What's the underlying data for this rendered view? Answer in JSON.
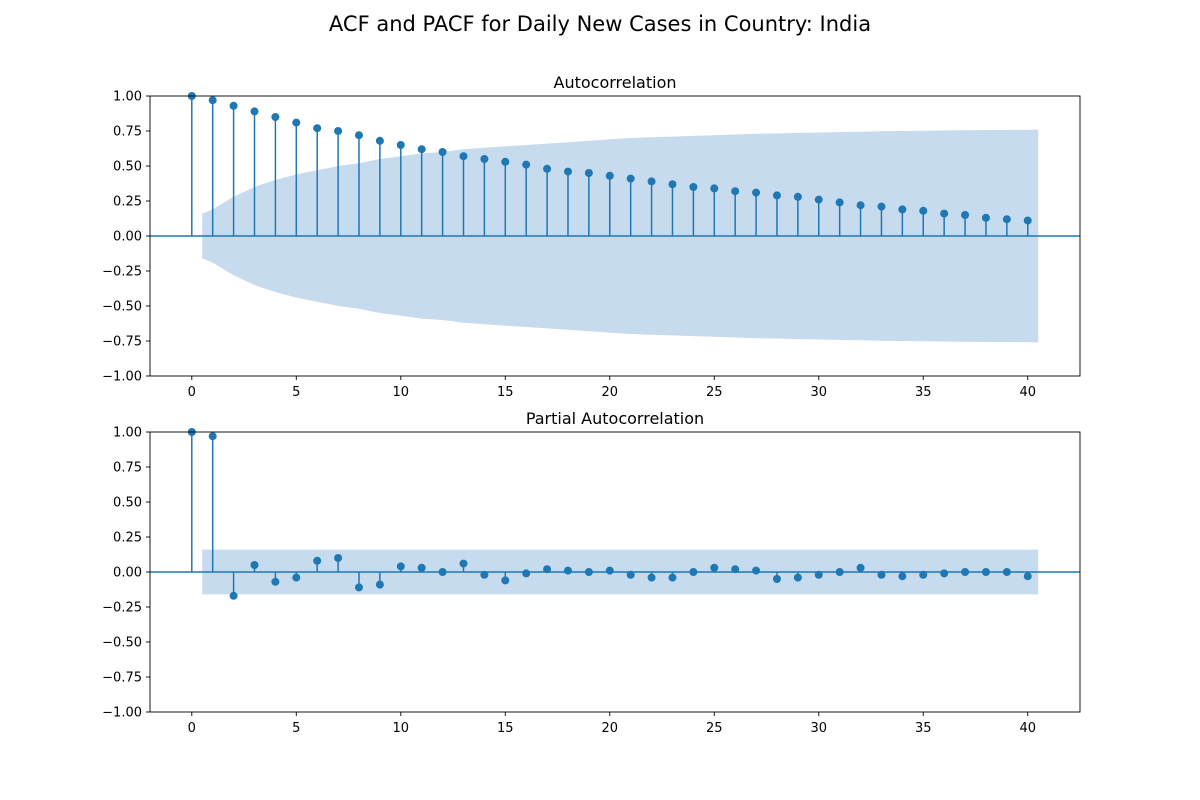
{
  "figure_title": "ACF and PACF for Daily New Cases in Country: India",
  "colors": {
    "accent": "#1f77b4",
    "band": "#c6dbed",
    "axis": "#000000"
  },
  "chart_data": [
    {
      "type": "scatter",
      "title": "Autocorrelation",
      "xlabel": "",
      "ylabel": "",
      "xlim": [
        -2,
        42.5
      ],
      "ylim": [
        -1.0,
        1.0
      ],
      "xticks": [
        0,
        5,
        10,
        15,
        20,
        25,
        30,
        35,
        40
      ],
      "yticks": [
        "1.00",
        "0.75",
        "0.50",
        "0.25",
        "0.00",
        "−0.25",
        "−0.50",
        "−0.75",
        "−1.00"
      ],
      "lags": [
        0,
        1,
        2,
        3,
        4,
        5,
        6,
        7,
        8,
        9,
        10,
        11,
        12,
        13,
        14,
        15,
        16,
        17,
        18,
        19,
        20,
        21,
        22,
        23,
        24,
        25,
        26,
        27,
        28,
        29,
        30,
        31,
        32,
        33,
        34,
        35,
        36,
        37,
        38,
        39,
        40
      ],
      "values": [
        1.0,
        0.97,
        0.93,
        0.89,
        0.85,
        0.81,
        0.77,
        0.75,
        0.72,
        0.68,
        0.65,
        0.62,
        0.6,
        0.57,
        0.55,
        0.53,
        0.51,
        0.48,
        0.46,
        0.45,
        0.43,
        0.41,
        0.39,
        0.37,
        0.35,
        0.34,
        0.32,
        0.31,
        0.29,
        0.28,
        0.26,
        0.24,
        0.22,
        0.21,
        0.19,
        0.18,
        0.16,
        0.15,
        0.13,
        0.12,
        0.11
      ],
      "confidence_band": {
        "lags": [
          0.5,
          1,
          2,
          3,
          4,
          5,
          6,
          7,
          8,
          9,
          10,
          11,
          12,
          13,
          14,
          15,
          16,
          17,
          18,
          19,
          20,
          21,
          22,
          23,
          24,
          25,
          26,
          27,
          28,
          29,
          30,
          31,
          32,
          33,
          34,
          35,
          36,
          37,
          38,
          39,
          40,
          40.5
        ],
        "upper": [
          0.16,
          0.19,
          0.28,
          0.35,
          0.4,
          0.44,
          0.47,
          0.5,
          0.52,
          0.55,
          0.57,
          0.59,
          0.6,
          0.62,
          0.63,
          0.64,
          0.65,
          0.66,
          0.67,
          0.68,
          0.69,
          0.7,
          0.705,
          0.71,
          0.715,
          0.72,
          0.725,
          0.73,
          0.733,
          0.736,
          0.739,
          0.742,
          0.745,
          0.748,
          0.75,
          0.752,
          0.754,
          0.756,
          0.757,
          0.758,
          0.759,
          0.76
        ]
      }
    },
    {
      "type": "scatter",
      "title": "Partial Autocorrelation",
      "xlabel": "",
      "ylabel": "",
      "xlim": [
        -2,
        42.5
      ],
      "ylim": [
        -1.0,
        1.0
      ],
      "xticks": [
        0,
        5,
        10,
        15,
        20,
        25,
        30,
        35,
        40
      ],
      "yticks": [
        "1.00",
        "0.75",
        "0.50",
        "0.25",
        "0.00",
        "−0.25",
        "−0.50",
        "−0.75",
        "−1.00"
      ],
      "lags": [
        0,
        1,
        2,
        3,
        4,
        5,
        6,
        7,
        8,
        9,
        10,
        11,
        12,
        13,
        14,
        15,
        16,
        17,
        18,
        19,
        20,
        21,
        22,
        23,
        24,
        25,
        26,
        27,
        28,
        29,
        30,
        31,
        32,
        33,
        34,
        35,
        36,
        37,
        38,
        39,
        40
      ],
      "values": [
        1.0,
        0.97,
        -0.17,
        0.05,
        -0.07,
        -0.04,
        0.08,
        0.1,
        -0.11,
        -0.09,
        0.04,
        0.03,
        0.0,
        0.06,
        -0.02,
        -0.06,
        -0.01,
        0.02,
        0.01,
        0.0,
        0.01,
        -0.02,
        -0.04,
        -0.04,
        0.0,
        0.03,
        0.02,
        0.01,
        -0.05,
        -0.04,
        -0.02,
        0.0,
        0.03,
        -0.02,
        -0.03,
        -0.02,
        -0.01,
        0.0,
        0.0,
        0.0,
        -0.03
      ],
      "confidence_band": {
        "lags": [
          0.5,
          40.5
        ],
        "upper": [
          0.16,
          0.16
        ]
      }
    }
  ]
}
